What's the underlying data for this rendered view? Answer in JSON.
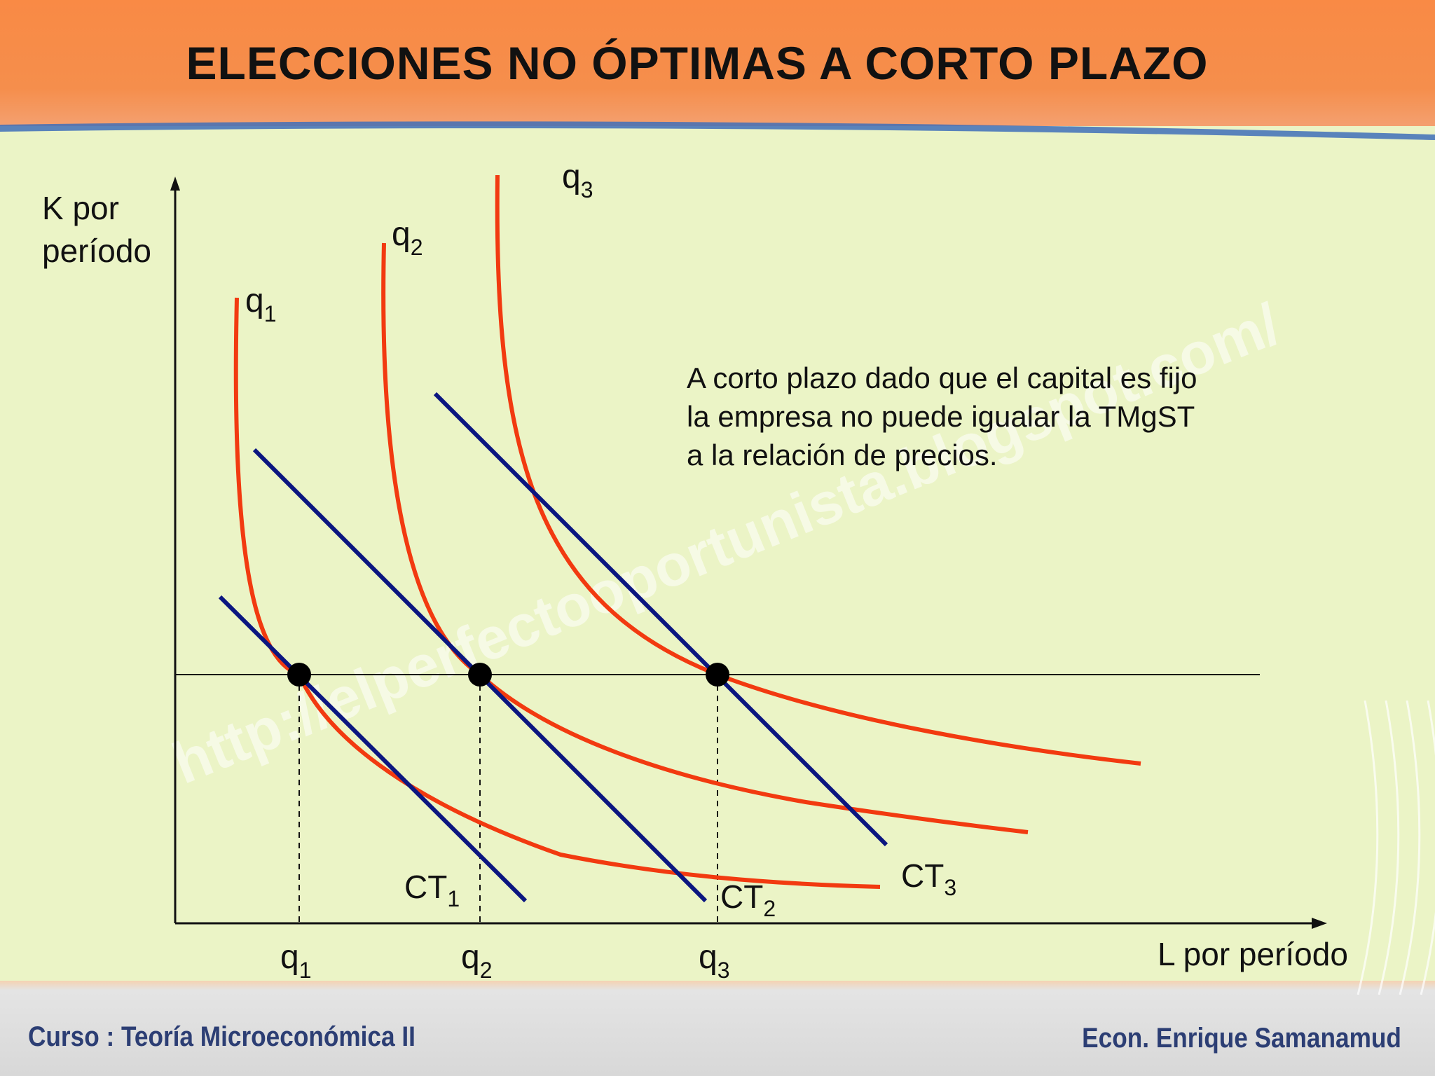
{
  "slide": {
    "title": "ELECCIONES NO ÓPTIMAS A CORTO PLAZO",
    "footer_left": "Curso : Teoría Microeconómica II",
    "footer_right": "Econ. Enrique Samanamud",
    "note_lines": [
      "A corto plazo dado que el capital es fijo",
      "la empresa no puede igualar la TMgST",
      "a la relación de precios."
    ],
    "watermark": "http://elperfectooportunista.blogspot.com/"
  },
  "diagram": {
    "y_axis_label_lines": [
      "K por",
      "período"
    ],
    "x_axis_label": "L por período",
    "isoquants": [
      {
        "base": "q",
        "sub": "1"
      },
      {
        "base": "q",
        "sub": "2"
      },
      {
        "base": "q",
        "sub": "3"
      }
    ],
    "isocosts": [
      {
        "base": "CT",
        "sub": "1"
      },
      {
        "base": "CT",
        "sub": "2"
      },
      {
        "base": "CT",
        "sub": "3"
      }
    ],
    "x_ticks": [
      {
        "base": "q",
        "sub": "1"
      },
      {
        "base": "q",
        "sub": "2"
      },
      {
        "base": "q",
        "sub": "3"
      }
    ],
    "colors": {
      "isoquant": "#f23a10",
      "isocost": "#0b1680",
      "axis": "#111111",
      "header": "#f98a45",
      "footer_text": "#2c3e74",
      "background": "#ebf4c6"
    }
  }
}
